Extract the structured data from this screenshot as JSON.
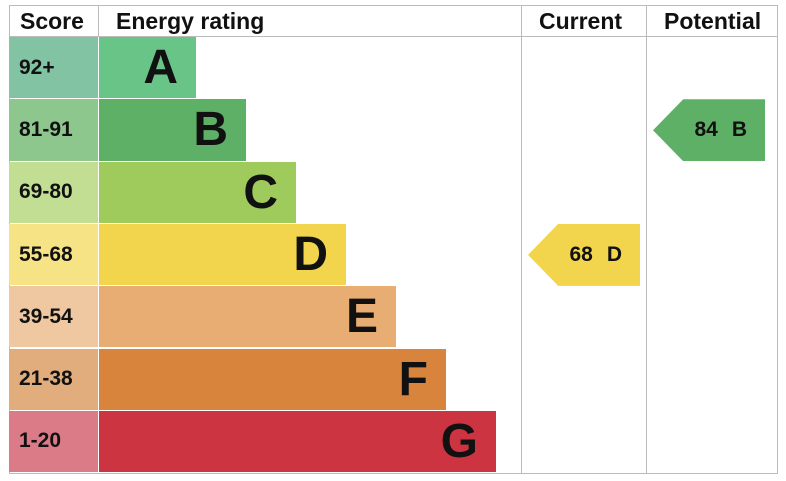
{
  "chart_data": {
    "type": "table",
    "headers": {
      "score": "Score",
      "rating": "Energy rating",
      "current": "Current",
      "potential": "Potential"
    },
    "bands": [
      {
        "letter": "A",
        "range": "92+",
        "color": "#69c487",
        "score_color": "#82c3a3"
      },
      {
        "letter": "B",
        "range": "81-91",
        "color": "#5eb066",
        "score_color": "#8dc78e"
      },
      {
        "letter": "C",
        "range": "69-80",
        "color": "#9ecb5b",
        "score_color": "#c1de93"
      },
      {
        "letter": "D",
        "range": "55-68",
        "color": "#f2d54c",
        "score_color": "#f6e386"
      },
      {
        "letter": "E",
        "range": "39-54",
        "color": "#e8ad73",
        "score_color": "#efc8a1"
      },
      {
        "letter": "F",
        "range": "21-38",
        "color": "#d8843c",
        "score_color": "#e2ad7d"
      },
      {
        "letter": "G",
        "range": "1-20",
        "color": "#cc3441",
        "score_color": "#db7b88"
      }
    ],
    "current": {
      "value": "68",
      "letter": "D"
    },
    "potential": {
      "value": "84",
      "letter": "B"
    }
  }
}
